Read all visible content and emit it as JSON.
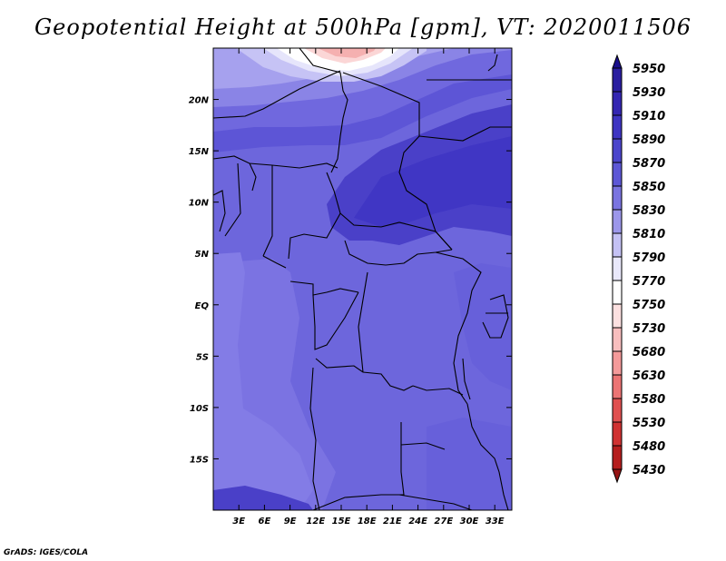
{
  "title": "Geopotential Height at 500hPa [gpm], VT: 2020011506",
  "footer": "GrADS: IGES/COLA",
  "map": {
    "lon_range": [
      0,
      35
    ],
    "lat_range": [
      -20,
      25
    ],
    "x_tick_labels": [
      "3E",
      "6E",
      "9E",
      "12E",
      "15E",
      "18E",
      "21E",
      "24E",
      "27E",
      "30E",
      "33E"
    ],
    "x_tick_values": [
      3,
      6,
      9,
      12,
      15,
      18,
      21,
      24,
      27,
      30,
      33
    ],
    "y_tick_labels": [
      "20N",
      "15N",
      "10N",
      "5N",
      "EQ",
      "5S",
      "10S",
      "15S"
    ],
    "y_tick_values": [
      20,
      15,
      10,
      5,
      0,
      -5,
      -10,
      -15
    ]
  },
  "colorbar": {
    "levels": [
      "5950",
      "5930",
      "5910",
      "5890",
      "5870",
      "5850",
      "5830",
      "5810",
      "5790",
      "5770",
      "5750",
      "5730",
      "5680",
      "5630",
      "5580",
      "5530",
      "5480",
      "5430"
    ],
    "colors": [
      "#1a0f8c",
      "#2a1ea0",
      "#3426b2",
      "#3e34c2",
      "#4b45cc",
      "#5d57d6",
      "#7a74e0",
      "#9c97ea",
      "#c4c1f4",
      "#e9e8fb",
      "#ffffff",
      "#fce0e0",
      "#f8bebe",
      "#f49a9a",
      "#ec7474",
      "#e05050",
      "#d03232",
      "#b51e1e",
      "#961414"
    ]
  }
}
